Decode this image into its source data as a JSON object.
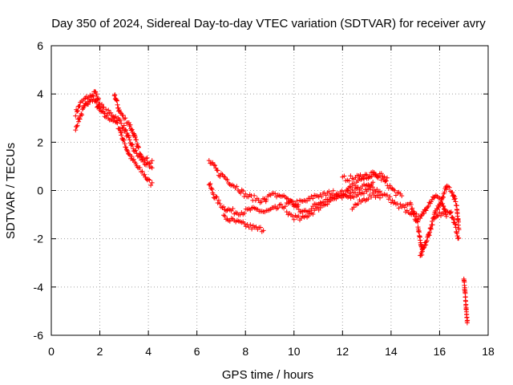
{
  "chart_data": {
    "type": "scatter",
    "title": "Day 350 of 2024, Sidereal Day-to-day VTEC variation (SDTVAR) for receiver avry",
    "xlabel": "GPS time / hours",
    "ylabel": "SDTVAR / TECUs",
    "xlim": [
      0,
      18
    ],
    "ylim": [
      -6,
      6
    ],
    "xticks": [
      "0",
      "2",
      "4",
      "6",
      "8",
      "10",
      "12",
      "14",
      "16",
      "18"
    ],
    "yticks": [
      "-6",
      "-4",
      "-2",
      "0",
      "2",
      "4",
      "6"
    ],
    "grid": true,
    "marker": "+",
    "color": "#ff0000",
    "series": [
      {
        "name": "SDTVAR",
        "tracks": [
          {
            "x": [
              1.0,
              1.2,
              1.4,
              1.6,
              1.8,
              2.0,
              2.2,
              2.4,
              2.6,
              2.8,
              3.0,
              3.2,
              3.4,
              3.6,
              3.8,
              4.0,
              4.2
            ],
            "y": [
              3.2,
              3.6,
              3.8,
              3.9,
              3.7,
              3.3,
              3.1,
              3.0,
              2.9,
              2.6,
              2.0,
              1.5,
              1.2,
              0.9,
              0.7,
              0.4,
              0.2
            ]
          },
          {
            "x": [
              1.0,
              1.2,
              1.4,
              1.6,
              1.8,
              2.0,
              2.2,
              2.4,
              2.6,
              2.8,
              3.0,
              3.2,
              3.4,
              3.6,
              3.8,
              4.0,
              4.2
            ],
            "y": [
              2.6,
              3.1,
              3.5,
              3.8,
              4.1,
              3.6,
              3.3,
              3.2,
              3.1,
              2.9,
              2.6,
              2.1,
              1.7,
              1.4,
              1.2,
              1.0,
              0.8
            ]
          },
          {
            "x": [
              2.6,
              2.8,
              3.0,
              3.2,
              3.4,
              3.6,
              3.8,
              4.0,
              4.2
            ],
            "y": [
              4.0,
              3.3,
              3.0,
              2.8,
              2.3,
              1.7,
              1.4,
              1.2,
              1.2
            ]
          },
          {
            "x": [
              6.5,
              6.7,
              6.9,
              7.1,
              7.3,
              7.6,
              7.9,
              8.2,
              8.5,
              8.8,
              9.1,
              9.4,
              9.7,
              10.0,
              10.3,
              10.6,
              10.9,
              11.2,
              11.5,
              11.8,
              12.1,
              12.4,
              12.7,
              13.0,
              13.3,
              13.6,
              13.9,
              14.2,
              14.5,
              14.8,
              15.1,
              15.3
            ],
            "y": [
              0.3,
              -0.2,
              -0.5,
              -0.7,
              -0.8,
              -0.9,
              -0.9,
              -0.8,
              -0.8,
              -0.9,
              -0.8,
              -0.7,
              -0.6,
              -0.5,
              -0.5,
              -0.4,
              -0.2,
              -0.2,
              -0.1,
              -0.1,
              -0.1,
              0.0,
              0.1,
              0.2,
              0.1,
              -0.1,
              -0.3,
              -0.6,
              -0.7,
              -0.6,
              -1.4,
              -2.6
            ]
          },
          {
            "x": [
              6.5,
              6.7,
              6.9,
              7.1,
              7.4,
              7.7,
              8.0,
              8.3,
              8.6,
              8.9
            ],
            "y": [
              1.2,
              1.0,
              0.7,
              0.6,
              0.3,
              0.1,
              -0.2,
              -0.3,
              -0.4,
              -0.4
            ]
          },
          {
            "x": [
              7.1,
              7.3,
              7.6,
              7.9,
              8.2,
              8.5,
              8.8
            ],
            "y": [
              -1.1,
              -1.2,
              -1.3,
              -1.4,
              -1.5,
              -1.6,
              -1.6
            ]
          },
          {
            "x": [
              8.8,
              9.1,
              9.4,
              9.7,
              10.0,
              10.3,
              10.6,
              10.9,
              11.2,
              11.5,
              11.8,
              12.1,
              12.4,
              12.7,
              13.0,
              13.3,
              13.6,
              13.9,
              14.2,
              14.5
            ],
            "y": [
              -0.3,
              -0.2,
              -0.2,
              -0.3,
              -0.6,
              -0.9,
              -0.8,
              -0.6,
              -0.4,
              -0.3,
              -0.2,
              -0.1,
              0.2,
              0.4,
              0.6,
              0.7,
              0.5,
              0.2,
              -0.1,
              -0.3
            ]
          },
          {
            "x": [
              9.7,
              10.0,
              10.3,
              10.6,
              10.9,
              11.2,
              11.5,
              11.8,
              12.1,
              12.4,
              12.7,
              13.0,
              13.3
            ],
            "y": [
              -0.9,
              -1.1,
              -1.2,
              -1.0,
              -0.8,
              -0.6,
              -0.4,
              -0.3,
              -0.3,
              -0.2,
              -0.1,
              0.0,
              0.3
            ]
          },
          {
            "x": [
              12.0,
              12.4,
              12.8,
              13.2,
              13.6,
              13.9
            ],
            "y": [
              0.5,
              0.5,
              0.6,
              0.6,
              0.6,
              0.4
            ]
          },
          {
            "x": [
              12.4,
              12.7,
              13.0,
              13.3,
              13.6
            ],
            "y": [
              -0.7,
              -0.5,
              -0.3,
              -0.2,
              -0.2
            ]
          },
          {
            "x": [
              14.6,
              14.9,
              15.2,
              15.5,
              15.8,
              16.1,
              16.3
            ],
            "y": [
              -0.9,
              -0.9,
              -1.2,
              -0.6,
              -0.2,
              -0.5,
              -1.1
            ]
          },
          {
            "x": [
              15.2,
              15.5,
              15.8,
              16.1,
              16.3,
              16.5,
              16.7,
              16.8
            ],
            "y": [
              -2.8,
              -2.0,
              -1.0,
              -0.3,
              0.2,
              0.0,
              -0.6,
              -1.6
            ]
          },
          {
            "x": [
              15.8,
              16.1,
              16.4,
              16.6,
              16.8
            ],
            "y": [
              -1.2,
              -0.9,
              -0.8,
              -1.3,
              -2.1
            ]
          },
          {
            "x": [
              17.0,
              17.03,
              17.06,
              17.09,
              17.12,
              17.15
            ],
            "y": [
              -3.7,
              -4.0,
              -4.4,
              -4.8,
              -5.2,
              -5.5
            ]
          }
        ]
      }
    ]
  }
}
